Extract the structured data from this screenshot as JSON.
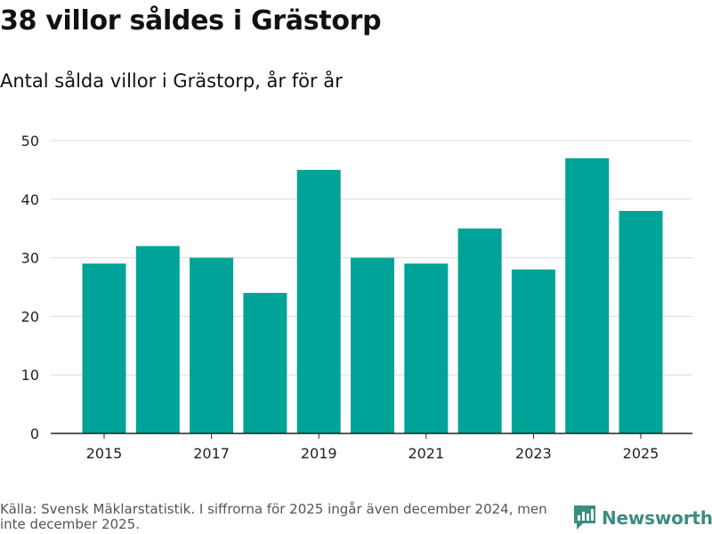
{
  "header": {
    "title": "38 villor såldes i Grästorp",
    "subtitle": "Antal sålda villor i Grästorp, år för år"
  },
  "footer": {
    "source": "Källa: Svensk Mäklarstatistik. I siffrorna för 2025 ingår även december 2024, men inte december 2025.",
    "brand": "Newsworthy",
    "brand_icon": "bar-chart-logo-icon"
  },
  "colors": {
    "bar": "#00a398",
    "grid": "#dcdcdc",
    "axis": "#222222",
    "brand": "#3a8d82"
  },
  "chart_data": {
    "type": "bar",
    "title": "38 villor såldes i Grästorp",
    "subtitle": "Antal sålda villor i Grästorp, år för år",
    "xlabel": "",
    "ylabel": "",
    "categories": [
      "2015",
      "2016",
      "2017",
      "2018",
      "2019",
      "2020",
      "2021",
      "2022",
      "2023",
      "2024",
      "2025"
    ],
    "values": [
      29,
      32,
      30,
      24,
      45,
      30,
      29,
      35,
      28,
      47,
      38
    ],
    "x_tick_labels": [
      "2015",
      "2017",
      "2019",
      "2021",
      "2023",
      "2025"
    ],
    "y_ticks": [
      0,
      10,
      20,
      30,
      40,
      50
    ],
    "ylim": [
      0,
      50
    ],
    "grid": true,
    "legend": "none"
  }
}
